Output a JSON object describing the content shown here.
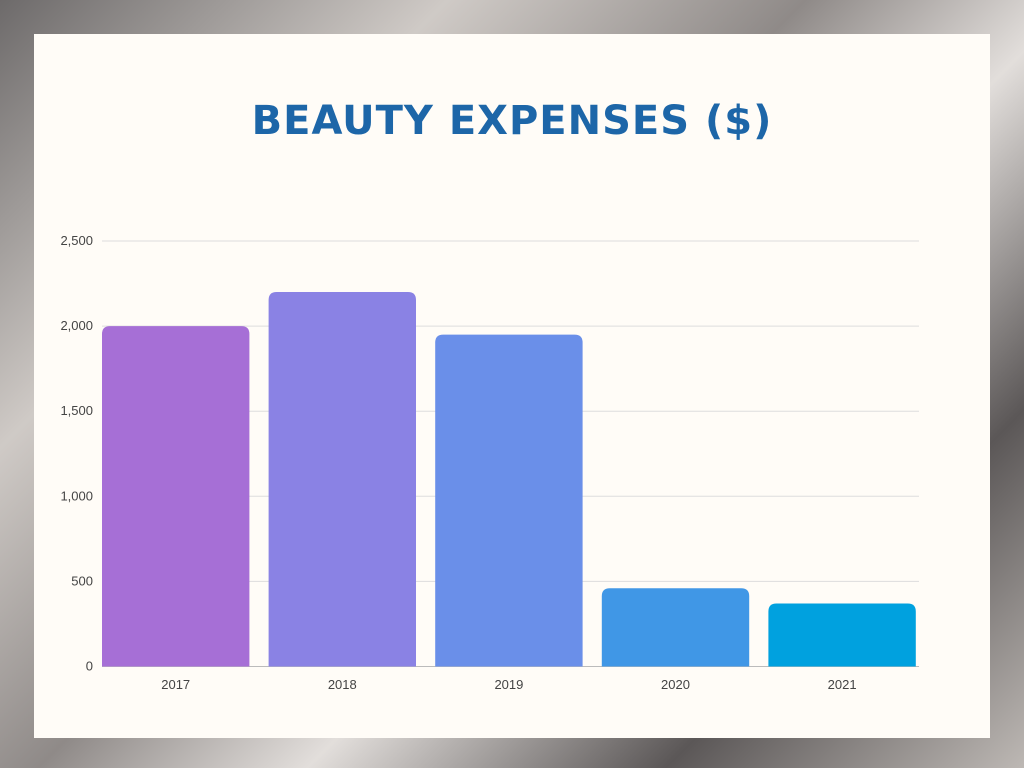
{
  "chart_data": {
    "type": "bar",
    "title": "BEAUTY EXPENSES ($)",
    "xlabel": "",
    "ylabel": "",
    "categories": [
      "2017",
      "2018",
      "2019",
      "2020",
      "2021"
    ],
    "values": [
      2000,
      2200,
      1950,
      460,
      370
    ],
    "ylim": [
      0,
      2500
    ],
    "yticks": [
      0,
      500,
      1000,
      1500,
      2000,
      2500
    ],
    "ytick_labels": [
      "0",
      "500",
      "1,000",
      "1,500",
      "2,000",
      "2,500"
    ],
    "grid": true,
    "colors": [
      "#a66fd6",
      "#8a82e4",
      "#6a8fe9",
      "#4097e6",
      "#00a1df"
    ],
    "title_color": "#1d66a8"
  }
}
